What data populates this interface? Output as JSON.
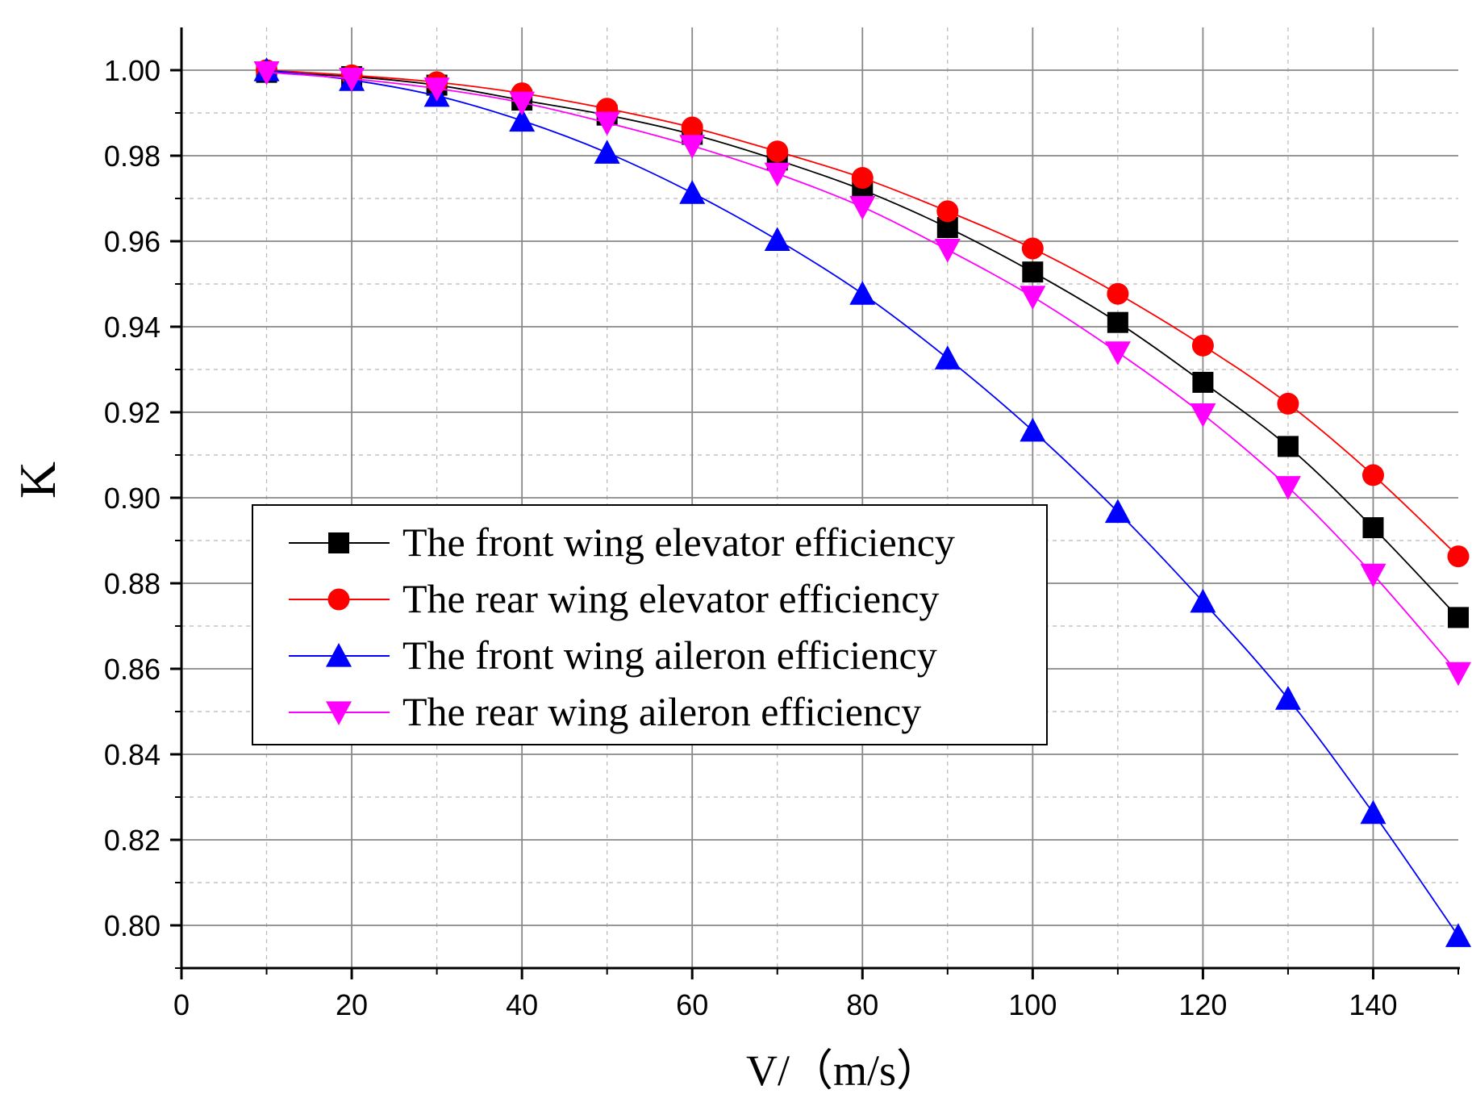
{
  "chart_data": {
    "type": "line",
    "title": "",
    "xlabel": "V/（m/s）",
    "ylabel": "K",
    "xlim": [
      0,
      150
    ],
    "ylim": [
      0.79,
      1.01
    ],
    "xticks": [
      0,
      20,
      40,
      60,
      80,
      100,
      120,
      140
    ],
    "yticks": [
      0.8,
      0.82,
      0.84,
      0.86,
      0.88,
      0.9,
      0.92,
      0.94,
      0.96,
      0.98,
      1.0
    ],
    "xtick_labels": [
      "0",
      "20",
      "40",
      "60",
      "80",
      "100",
      "120",
      "140"
    ],
    "ytick_labels": [
      "0.80",
      "0.82",
      "0.84",
      "0.86",
      "0.88",
      "0.90",
      "0.92",
      "0.94",
      "0.96",
      "0.98",
      "1.00"
    ],
    "grid": true,
    "legend_position": "center-left",
    "x": [
      10,
      20,
      30,
      40,
      50,
      60,
      70,
      80,
      90,
      100,
      110,
      120,
      130,
      140,
      150
    ],
    "series": [
      {
        "name": "The front wing elevator efficiency",
        "color": "#000000",
        "marker": "square",
        "values": [
          0.9995,
          0.9985,
          0.9965,
          0.993,
          0.9895,
          0.985,
          0.979,
          0.972,
          0.9632,
          0.9528,
          0.941,
          0.927,
          0.912,
          0.893,
          0.872
        ]
      },
      {
        "name": "The rear wing elevator efficiency",
        "color": "#ff0000",
        "marker": "circle",
        "values": [
          1.0,
          0.9988,
          0.9972,
          0.9946,
          0.991,
          0.9866,
          0.981,
          0.9748,
          0.967,
          0.9583,
          0.9477,
          0.9356,
          0.922,
          0.9053,
          0.8863
        ]
      },
      {
        "name": "The front wing aileron efficiency",
        "color": "#0000ff",
        "marker": "triangle-up",
        "values": [
          1.0,
          0.9977,
          0.994,
          0.9882,
          0.9807,
          0.9713,
          0.9603,
          0.9477,
          0.9326,
          0.9157,
          0.8967,
          0.8757,
          0.853,
          0.8263,
          0.7975
        ]
      },
      {
        "name": "The rear wing aileron efficiency",
        "color": "#ff00ff",
        "marker": "triangle-down",
        "values": [
          0.9995,
          0.998,
          0.9957,
          0.9924,
          0.9877,
          0.9823,
          0.9758,
          0.968,
          0.958,
          0.947,
          0.934,
          0.9195,
          0.9025,
          0.882,
          0.859
        ]
      }
    ]
  }
}
